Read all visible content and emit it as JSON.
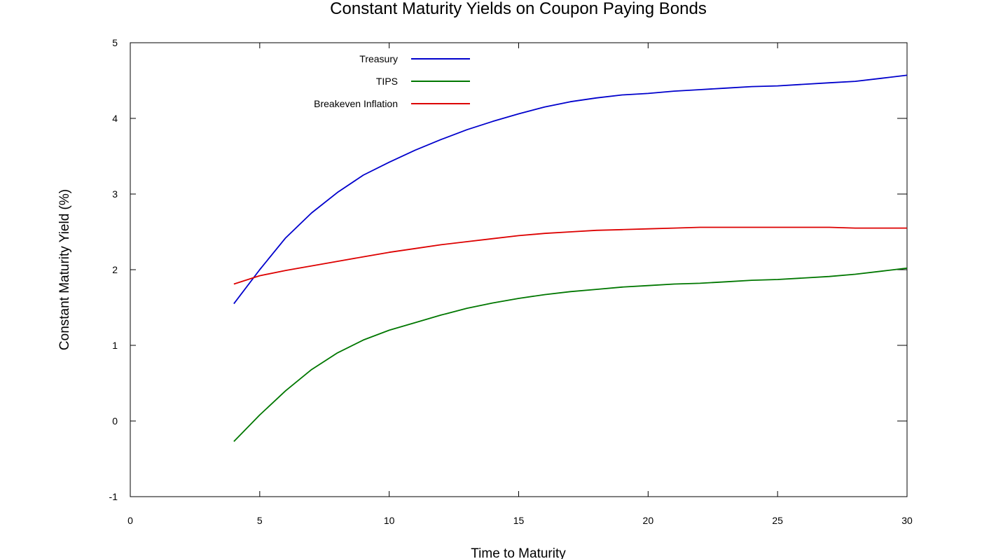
{
  "chart_data": {
    "type": "line",
    "title": "Constant Maturity Yields on Coupon Paying Bonds",
    "xlabel": "Time to Maturity",
    "ylabel": "Constant Maturity Yield (%)",
    "xlim": [
      0,
      30
    ],
    "ylim": [
      -1,
      5
    ],
    "xticks": [
      "0",
      "5",
      "10",
      "15",
      "20",
      "25",
      "30"
    ],
    "yticks": [
      "-1",
      "0",
      "1",
      "2",
      "3",
      "4",
      "5"
    ],
    "grid": false,
    "legend_position": "top-left",
    "series": [
      {
        "name": "Treasury",
        "color": "#0000cc",
        "points": [
          [
            4,
            1.55
          ],
          [
            5,
            2.0
          ],
          [
            6,
            2.42
          ],
          [
            7,
            2.75
          ],
          [
            8,
            3.02
          ],
          [
            9,
            3.25
          ],
          [
            10,
            3.42
          ],
          [
            11,
            3.58
          ],
          [
            12,
            3.72
          ],
          [
            13,
            3.85
          ],
          [
            14,
            3.96
          ],
          [
            15,
            4.06
          ],
          [
            16,
            4.15
          ],
          [
            17,
            4.22
          ],
          [
            18,
            4.27
          ],
          [
            19,
            4.31
          ],
          [
            20,
            4.33
          ],
          [
            21,
            4.36
          ],
          [
            22,
            4.38
          ],
          [
            23,
            4.4
          ],
          [
            24,
            4.42
          ],
          [
            25,
            4.43
          ],
          [
            26,
            4.45
          ],
          [
            27,
            4.47
          ],
          [
            28,
            4.49
          ],
          [
            29,
            4.53
          ],
          [
            30,
            4.57
          ]
        ]
      },
      {
        "name": "TIPS",
        "color": "#007700",
        "points": [
          [
            4,
            -0.27
          ],
          [
            5,
            0.08
          ],
          [
            6,
            0.4
          ],
          [
            7,
            0.68
          ],
          [
            8,
            0.9
          ],
          [
            9,
            1.07
          ],
          [
            10,
            1.2
          ],
          [
            11,
            1.3
          ],
          [
            12,
            1.4
          ],
          [
            13,
            1.49
          ],
          [
            14,
            1.56
          ],
          [
            15,
            1.62
          ],
          [
            16,
            1.67
          ],
          [
            17,
            1.71
          ],
          [
            18,
            1.74
          ],
          [
            19,
            1.77
          ],
          [
            20,
            1.79
          ],
          [
            21,
            1.81
          ],
          [
            22,
            1.82
          ],
          [
            23,
            1.84
          ],
          [
            24,
            1.86
          ],
          [
            25,
            1.87
          ],
          [
            26,
            1.89
          ],
          [
            27,
            1.91
          ],
          [
            28,
            1.94
          ],
          [
            29,
            1.98
          ],
          [
            30,
            2.02
          ]
        ]
      },
      {
        "name": "Breakeven Inflation",
        "color": "#dd0000",
        "points": [
          [
            4,
            1.81
          ],
          [
            5,
            1.92
          ],
          [
            6,
            1.99
          ],
          [
            7,
            2.05
          ],
          [
            8,
            2.11
          ],
          [
            9,
            2.17
          ],
          [
            10,
            2.23
          ],
          [
            11,
            2.28
          ],
          [
            12,
            2.33
          ],
          [
            13,
            2.37
          ],
          [
            14,
            2.41
          ],
          [
            15,
            2.45
          ],
          [
            16,
            2.48
          ],
          [
            17,
            2.5
          ],
          [
            18,
            2.52
          ],
          [
            19,
            2.53
          ],
          [
            20,
            2.54
          ],
          [
            21,
            2.55
          ],
          [
            22,
            2.56
          ],
          [
            23,
            2.56
          ],
          [
            24,
            2.56
          ],
          [
            25,
            2.56
          ],
          [
            26,
            2.56
          ],
          [
            27,
            2.56
          ],
          [
            28,
            2.55
          ],
          [
            29,
            2.55
          ],
          [
            30,
            2.55
          ]
        ]
      }
    ]
  }
}
